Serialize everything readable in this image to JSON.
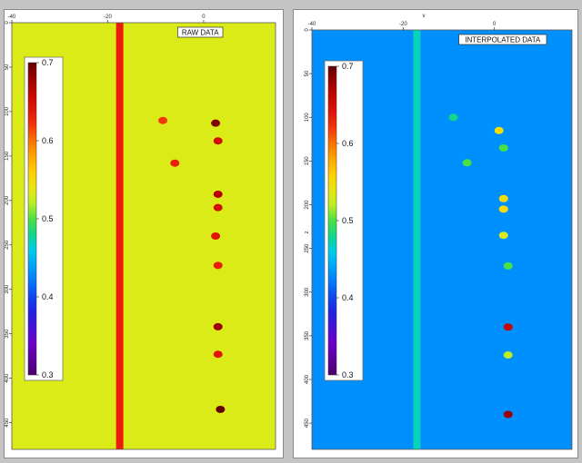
{
  "chart_data": [
    {
      "type": "heatmap",
      "title": "RAW DATA",
      "xlabel": "",
      "ylabel": "",
      "x_ticks": [
        -40,
        -20,
        0
      ],
      "y_ticks": [
        0,
        50,
        100,
        150,
        200,
        250,
        300,
        350,
        400,
        450
      ],
      "xlim": [
        -40,
        15
      ],
      "ylim": [
        0,
        480
      ],
      "colorbar": {
        "ticks": [
          0.7,
          0.6,
          0.5,
          0.4,
          0.3
        ],
        "range": [
          0.3,
          0.7
        ]
      },
      "background_value": 0.53,
      "stripes": [
        {
          "x": -17.5,
          "value": 0.63
        }
      ],
      "anomalies": [
        {
          "x": 2.5,
          "y": 113,
          "value": 0.69
        },
        {
          "x": 3.0,
          "y": 133,
          "value": 0.65
        },
        {
          "x": 3.0,
          "y": 193,
          "value": 0.67
        },
        {
          "x": 3.0,
          "y": 208,
          "value": 0.65
        },
        {
          "x": 2.5,
          "y": 240,
          "value": 0.64
        },
        {
          "x": 3.0,
          "y": 273,
          "value": 0.63
        },
        {
          "x": 3.0,
          "y": 342,
          "value": 0.68
        },
        {
          "x": 3.0,
          "y": 373,
          "value": 0.64
        },
        {
          "x": 3.5,
          "y": 435,
          "value": 0.7
        },
        {
          "x": -6.0,
          "y": 158,
          "value": 0.63
        },
        {
          "x": -8.5,
          "y": 110,
          "value": 0.62
        }
      ]
    },
    {
      "type": "heatmap",
      "title": "INTERPOLATED DATA",
      "xlabel": "v",
      "ylabel": "z",
      "x_ticks": [
        -40,
        -20,
        0
      ],
      "y_ticks": [
        0,
        50,
        100,
        150,
        200,
        250,
        300,
        350,
        400,
        450
      ],
      "xlim": [
        -40,
        17
      ],
      "ylim": [
        0,
        480
      ],
      "colorbar": {
        "ticks": [
          0.7,
          0.6,
          0.5,
          0.4,
          0.3
        ],
        "range": [
          0.3,
          0.7
        ]
      },
      "background_value": 0.43,
      "stripes": [
        {
          "x": -17.0,
          "value": 0.47
        }
      ],
      "anomalies": [
        {
          "x": 1.0,
          "y": 115,
          "value": 0.55
        },
        {
          "x": 2.0,
          "y": 135,
          "value": 0.5
        },
        {
          "x": 2.0,
          "y": 193,
          "value": 0.55
        },
        {
          "x": 2.0,
          "y": 205,
          "value": 0.55
        },
        {
          "x": 2.0,
          "y": 235,
          "value": 0.53
        },
        {
          "x": 3.0,
          "y": 270,
          "value": 0.5
        },
        {
          "x": 3.0,
          "y": 340,
          "value": 0.66
        },
        {
          "x": 3.0,
          "y": 372,
          "value": 0.52
        },
        {
          "x": 3.0,
          "y": 440,
          "value": 0.68
        },
        {
          "x": -6.0,
          "y": 152,
          "value": 0.5
        },
        {
          "x": -9.0,
          "y": 100,
          "value": 0.48
        }
      ]
    }
  ]
}
